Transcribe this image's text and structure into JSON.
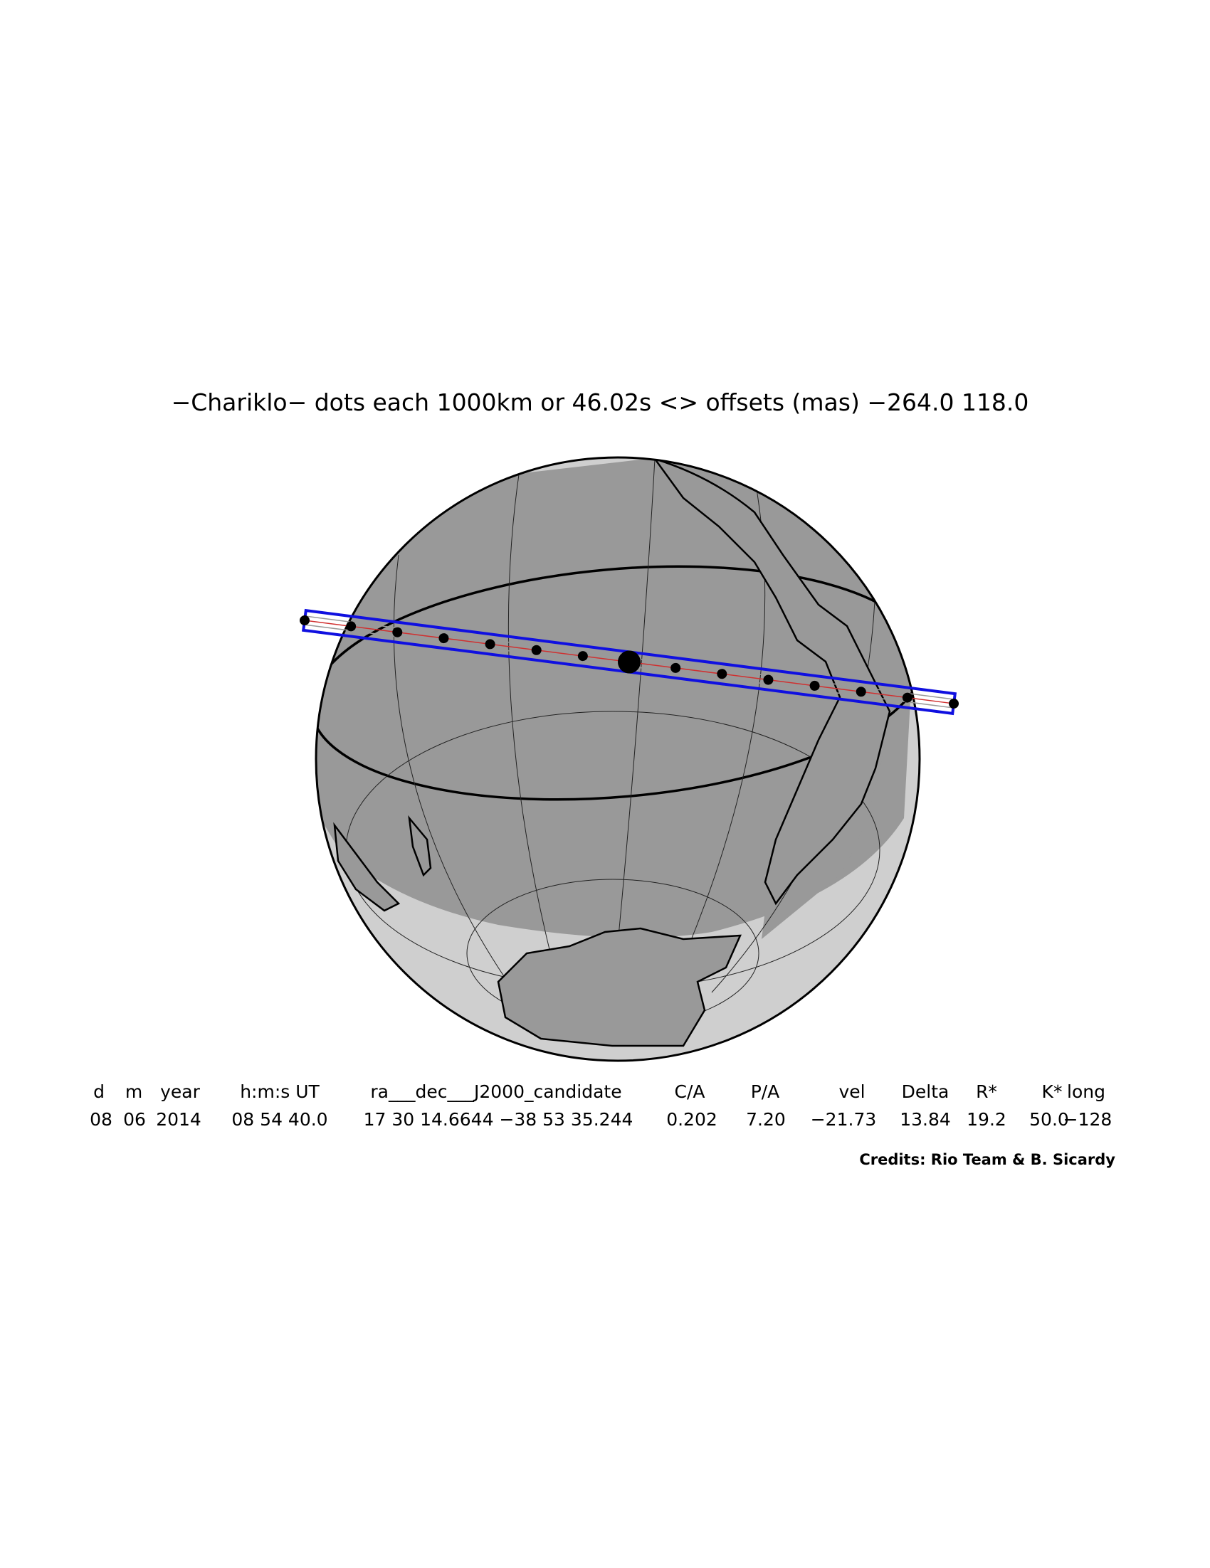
{
  "title": "−Chariklo− dots each 1000km or 46.02s <> offsets (mas) −264.0  118.0",
  "table": {
    "headers": [
      "d",
      "m",
      "year",
      "h:m:s UT",
      "ra___dec___J2000_candidate",
      "C/A",
      "P/A",
      "vel",
      "Delta",
      "R*",
      "K*",
      "long"
    ],
    "values": [
      "08",
      "06",
      "2014",
      "08 54 40.0",
      "17 30 14.6644 −38 53 35.244",
      "0.202",
      "7.20",
      "−21.73",
      "13.84",
      "19.2",
      "50.0",
      "−128"
    ]
  },
  "credits": "Credits: Rio Team & B. Sicardy"
}
